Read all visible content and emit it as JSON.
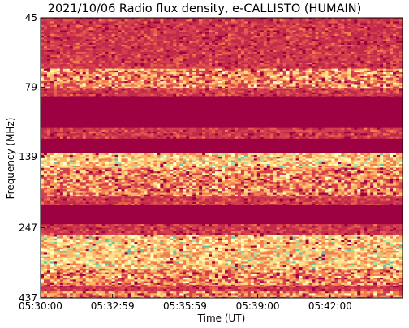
{
  "chart_data": {
    "type": "heatmap",
    "title": "2021/10/06  Radio flux density, e-CALLISTO (HUMAIN)",
    "xlabel": "Time (UT)",
    "ylabel": "Frequency (MHz)",
    "x_ticks": [
      "05:30:00",
      "05:32:59",
      "05:35:59",
      "05:39:00",
      "05:42:00"
    ],
    "x_tick_seconds": [
      0,
      179,
      359,
      540,
      720
    ],
    "x_range_seconds": [
      0,
      900
    ],
    "y_ticks": [
      45,
      79,
      139,
      247,
      437
    ],
    "y_range_mhz": [
      45,
      437
    ],
    "y_inverted": true,
    "grid": false,
    "colormap": "Spectral",
    "bands": [
      {
        "from_mhz": 45,
        "to_mhz": 68,
        "level": "mixed"
      },
      {
        "from_mhz": 68,
        "to_mhz": 80,
        "level": "mixed-bright"
      },
      {
        "from_mhz": 80,
        "to_mhz": 85,
        "level": "mixed"
      },
      {
        "from_mhz": 85,
        "to_mhz": 110,
        "level": "background"
      },
      {
        "from_mhz": 110,
        "to_mhz": 120,
        "level": "mixed"
      },
      {
        "from_mhz": 120,
        "to_mhz": 135,
        "level": "background"
      },
      {
        "from_mhz": 135,
        "to_mhz": 152,
        "level": "bright"
      },
      {
        "from_mhz": 152,
        "to_mhz": 192,
        "level": "mixed-bright"
      },
      {
        "from_mhz": 192,
        "to_mhz": 205,
        "level": "mixed"
      },
      {
        "from_mhz": 205,
        "to_mhz": 240,
        "level": "background"
      },
      {
        "from_mhz": 240,
        "to_mhz": 262,
        "level": "mixed"
      },
      {
        "from_mhz": 262,
        "to_mhz": 345,
        "level": "bright"
      },
      {
        "from_mhz": 345,
        "to_mhz": 395,
        "level": "mixed-bright"
      },
      {
        "from_mhz": 395,
        "to_mhz": 415,
        "level": "mixed"
      },
      {
        "from_mhz": 415,
        "to_mhz": 437,
        "level": "mixed-bright"
      }
    ],
    "colors": {
      "background": "#9e0142",
      "dark_red": "#c2294a",
      "red": "#d53e4f",
      "orange_red": "#e65d4a",
      "orange": "#f47d4d",
      "light_orange": "#fbb468",
      "yellow": "#fee08b",
      "pale_yellow": "#ffffbf",
      "green": "#abdda4",
      "cyan_green": "#66c2a5"
    }
  }
}
